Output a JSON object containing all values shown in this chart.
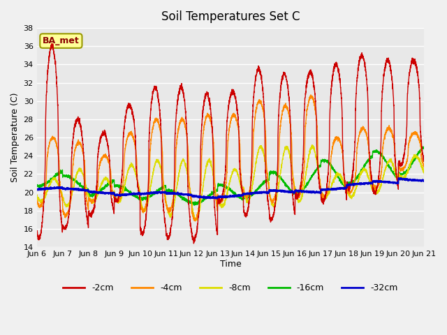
{
  "title": "Soil Temperatures Set C",
  "xlabel": "Time",
  "ylabel": "Soil Temperature (C)",
  "ylim": [
    14,
    38
  ],
  "yticks": [
    14,
    16,
    18,
    20,
    22,
    24,
    26,
    28,
    30,
    32,
    34,
    36,
    38
  ],
  "annotation": "BA_met",
  "legend_labels": [
    "-2cm",
    "-4cm",
    "-8cm",
    "-16cm",
    "-32cm"
  ],
  "line_colors": [
    "#cc0000",
    "#ff8800",
    "#dddd00",
    "#00bb00",
    "#0000cc"
  ],
  "bg_color": "#e8e8e8",
  "fig_bg_color": "#f0f0f0",
  "grid_color": "#ffffff",
  "xtick_labels": [
    "Jun 6",
    "Jun 7",
    "Jun 8",
    "Jun 9",
    "Jun 10",
    "Jun 11",
    "Jun 12",
    "Jun 13",
    "Jun 14",
    "Jun 15",
    "Jun 16",
    "Jun 17",
    "Jun 18",
    "Jun 19",
    "Jun 20",
    "Jun 21"
  ],
  "num_days": 15,
  "peak_2cm": [
    36,
    28,
    26.5,
    29.5,
    31.5,
    31.5,
    30.8,
    31.0,
    33.5,
    33.0,
    33.2,
    34.0,
    35.0,
    34.5,
    34.5
  ],
  "trough_2cm": [
    15.0,
    16.0,
    17.5,
    19.0,
    15.5,
    15.0,
    14.8,
    19.0,
    17.5,
    17.0,
    19.5,
    19.0,
    20.5,
    20.0,
    23.0
  ],
  "peak_4cm": [
    26,
    25.5,
    24.0,
    26.5,
    28.0,
    28.0,
    28.5,
    28.5,
    30.0,
    29.5,
    30.5,
    26.0,
    27.0,
    27.0,
    26.5
  ],
  "trough_4cm": [
    18.5,
    17.5,
    19.0,
    19.0,
    18.0,
    18.0,
    17.0,
    19.0,
    19.5,
    19.0,
    19.5,
    19.5,
    20.0,
    20.5,
    22.5
  ],
  "peak_8cm": [
    21.5,
    22.5,
    21.5,
    23.0,
    23.5,
    23.5,
    23.5,
    22.5,
    25.0,
    25.0,
    25.0,
    22.0,
    22.5,
    23.5,
    24.0
  ],
  "trough_8cm": [
    19.0,
    18.5,
    19.0,
    19.0,
    18.0,
    17.5,
    17.0,
    18.5,
    19.0,
    18.5,
    19.0,
    19.5,
    19.5,
    20.0,
    21.5
  ],
  "base_16cm": [
    21.5,
    21.0,
    20.5,
    20.0,
    20.0,
    19.5,
    19.5,
    20.0,
    20.5,
    21.0,
    21.5,
    22.0,
    22.5,
    23.0,
    23.5
  ],
  "base_32cm": [
    20.3,
    20.2,
    20.1,
    19.9,
    19.8,
    19.7,
    19.6,
    19.7,
    19.8,
    20.0,
    20.2,
    20.5,
    20.8,
    21.0,
    21.5
  ]
}
